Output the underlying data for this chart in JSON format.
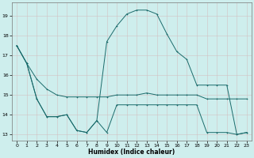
{
  "xlabel": "Humidex (Indice chaleur)",
  "bg_color": "#ceeeed",
  "grid_color_major": "#c0dcdc",
  "grid_color_minor": "#d8eeed",
  "line_color": "#1a6b6b",
  "xlim": [
    -0.5,
    23.5
  ],
  "ylim": [
    12.7,
    19.7
  ],
  "yticks": [
    13,
    14,
    15,
    16,
    17,
    18,
    19
  ],
  "xticks": [
    0,
    1,
    2,
    3,
    4,
    5,
    6,
    7,
    8,
    9,
    10,
    11,
    12,
    13,
    14,
    15,
    16,
    17,
    18,
    19,
    20,
    21,
    22,
    23
  ],
  "line1_x": [
    0,
    1,
    2,
    3,
    4,
    5,
    6,
    7,
    8,
    9,
    10,
    11,
    12,
    13,
    14,
    15,
    16,
    17,
    18,
    19,
    20,
    21,
    22,
    23
  ],
  "line1_y": [
    17.5,
    16.6,
    15.8,
    15.3,
    15.0,
    14.9,
    14.9,
    14.9,
    14.9,
    14.9,
    15.0,
    15.0,
    15.0,
    15.1,
    15.0,
    15.0,
    15.0,
    15.0,
    15.0,
    14.8,
    14.8,
    14.8,
    14.8,
    14.8
  ],
  "line2_x": [
    0,
    1,
    2,
    3,
    4,
    5,
    6,
    7,
    8,
    9,
    10,
    11,
    12,
    13,
    14,
    15,
    16,
    17,
    18,
    19,
    20,
    21,
    22,
    23
  ],
  "line2_y": [
    17.5,
    16.6,
    14.8,
    13.9,
    13.9,
    14.0,
    13.2,
    13.1,
    13.7,
    13.1,
    14.5,
    14.5,
    14.5,
    14.5,
    14.5,
    14.5,
    14.5,
    14.5,
    14.5,
    13.1,
    13.1,
    13.1,
    13.0,
    13.1
  ],
  "line3_x": [
    0,
    1,
    2,
    3,
    4,
    5,
    6,
    7,
    8,
    9,
    10,
    11,
    12,
    13,
    14,
    15,
    16,
    17,
    18,
    19,
    20,
    21,
    22,
    23
  ],
  "line3_y": [
    17.5,
    16.6,
    14.8,
    13.9,
    13.9,
    14.0,
    13.2,
    13.1,
    13.7,
    17.7,
    18.5,
    19.1,
    19.3,
    19.3,
    19.1,
    18.1,
    17.2,
    16.8,
    15.5,
    15.5,
    15.5,
    15.5,
    13.0,
    13.1
  ]
}
